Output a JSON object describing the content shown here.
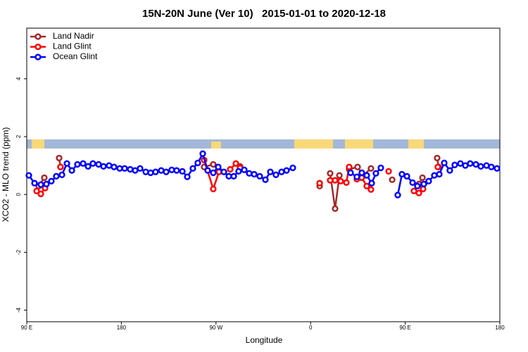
{
  "chart_data": {
    "type": "line",
    "title": "15N-20N June (Ver 10)   2015-01-01 to 2020-12-18",
    "xlabel": "Longitude",
    "ylabel": "XCO2 - MLO trend (ppm)",
    "xlim": [
      90,
      540
    ],
    "xticks": [
      {
        "value": 90,
        "label": "90 E"
      },
      180,
      {
        "value": 270,
        "label": "90 W"
      },
      {
        "value": 360,
        "label": "0"
      },
      {
        "value": 450,
        "label": "90 E"
      },
      {
        "value": 540,
        "label": "180"
      }
    ],
    "ylim": [
      -4.4,
      5.75
    ],
    "yticks": [
      -4,
      -2,
      0,
      2,
      4
    ],
    "legend": "top-left",
    "series": [
      {
        "name": "Land Nadir",
        "color": "#a52a2a",
        "x": [
          101.4,
          106.7,
          null,
          120.8,
          122.1,
          null,
          258.7,
          267.4,
          null,
          292.9,
          null,
          368.6,
          null,
          378.6,
          383.3,
          387.4,
          null,
          396.7,
          404.7,
          410.0,
          417.4,
          null,
          437.6,
          null,
          463.0,
          466.4,
          null,
          480.4,
          481.7
        ],
        "values": [
          0.29,
          0.58,
          null,
          1.26,
          0.95,
          null,
          0.95,
          1.04,
          null,
          0.97,
          null,
          0.29,
          null,
          0.73,
          -0.49,
          0.66,
          null,
          0.87,
          0.95,
          0.66,
          0.9,
          null,
          0.51,
          null,
          0.36,
          0.58,
          null,
          1.26,
          0.95
        ]
      },
      {
        "name": "Land Glint",
        "color": "#ff0000",
        "x": [
          99.4,
          103.4,
          107.4,
          null,
          122.1,
          null,
          258.7,
          267.4,
          272.8,
          null,
          283.5,
          288.9,
          292.9,
          null,
          368.6,
          null,
          378.6,
          383.3,
          388.6,
          394.0,
          396.7,
          null,
          404.0,
          408.7,
          413.4,
          417.4,
          null,
          434.2,
          null,
          458.3,
          463.0,
          467.0,
          null,
          481.0
        ],
        "values": [
          0.12,
          0.02,
          0.22,
          null,
          0.95,
          null,
          1.19,
          0.19,
          0.78,
          null,
          0.87,
          1.07,
          0.92,
          null,
          0.39,
          null,
          0.49,
          0.49,
          0.46,
          0.41,
          0.95,
          null,
          0.53,
          0.58,
          0.29,
          0.17,
          null,
          0.8,
          null,
          0.12,
          0.05,
          0.19,
          null,
          0.95
        ]
      },
      {
        "name": "Ocean Glint",
        "color": "#0000ff",
        "x": [
          92.0,
          97.4,
          103.4,
          108.7,
          113.4,
          118.1,
          123.5,
          128.2,
          132.9,
          138.2,
          143.6,
          148.3,
          152.9,
          158.3,
          163.0,
          168.3,
          173.0,
          178.4,
          183.1,
          188.4,
          193.1,
          197.8,
          203.2,
          207.8,
          212.5,
          217.9,
          222.6,
          227.9,
          232.6,
          238.0,
          242.7,
          248.0,
          252.7,
          257.4,
          262.1,
          267.4,
          272.1,
          277.5,
          282.2,
          286.9,
          291.5,
          296.9,
          301.6,
          306.3,
          311.6,
          317.0,
          321.7,
          327.0,
          332.4,
          337.1,
          343.1,
          null,
          398.0,
          404.0,
          408.7,
          413.4,
          418.1,
          422.1,
          426.8,
          null,
          442.9,
          446.9,
          451.6,
          457.0,
          461.6,
          467.7,
          472.3,
          477.7,
          482.4,
          487.1,
          492.4,
          497.1,
          502.5,
          507.2,
          511.8,
          517.2,
          521.9,
          527.3,
          531.9,
          537.3
        ],
        "values": [
          0.66,
          0.39,
          0.34,
          0.36,
          0.46,
          0.63,
          0.68,
          1.07,
          0.83,
          1.04,
          1.07,
          0.97,
          1.07,
          1.04,
          0.97,
          1.0,
          0.95,
          0.9,
          0.9,
          0.87,
          0.83,
          0.9,
          0.78,
          0.75,
          0.78,
          0.83,
          0.78,
          0.85,
          0.83,
          0.8,
          0.61,
          0.9,
          1.09,
          1.41,
          0.83,
          0.75,
          0.95,
          0.78,
          0.63,
          0.63,
          0.8,
          0.85,
          0.73,
          0.7,
          0.63,
          0.51,
          0.78,
          0.68,
          0.78,
          0.83,
          0.92,
          null,
          0.75,
          0.61,
          0.75,
          0.66,
          0.39,
          0.73,
          0.92,
          null,
          -0.02,
          0.7,
          0.63,
          0.41,
          0.29,
          0.36,
          0.46,
          0.66,
          0.7,
          1.09,
          0.83,
          1.02,
          1.07,
          1.0,
          1.07,
          1.04,
          0.97,
          1.0,
          0.95,
          0.9
        ]
      }
    ]
  }
}
